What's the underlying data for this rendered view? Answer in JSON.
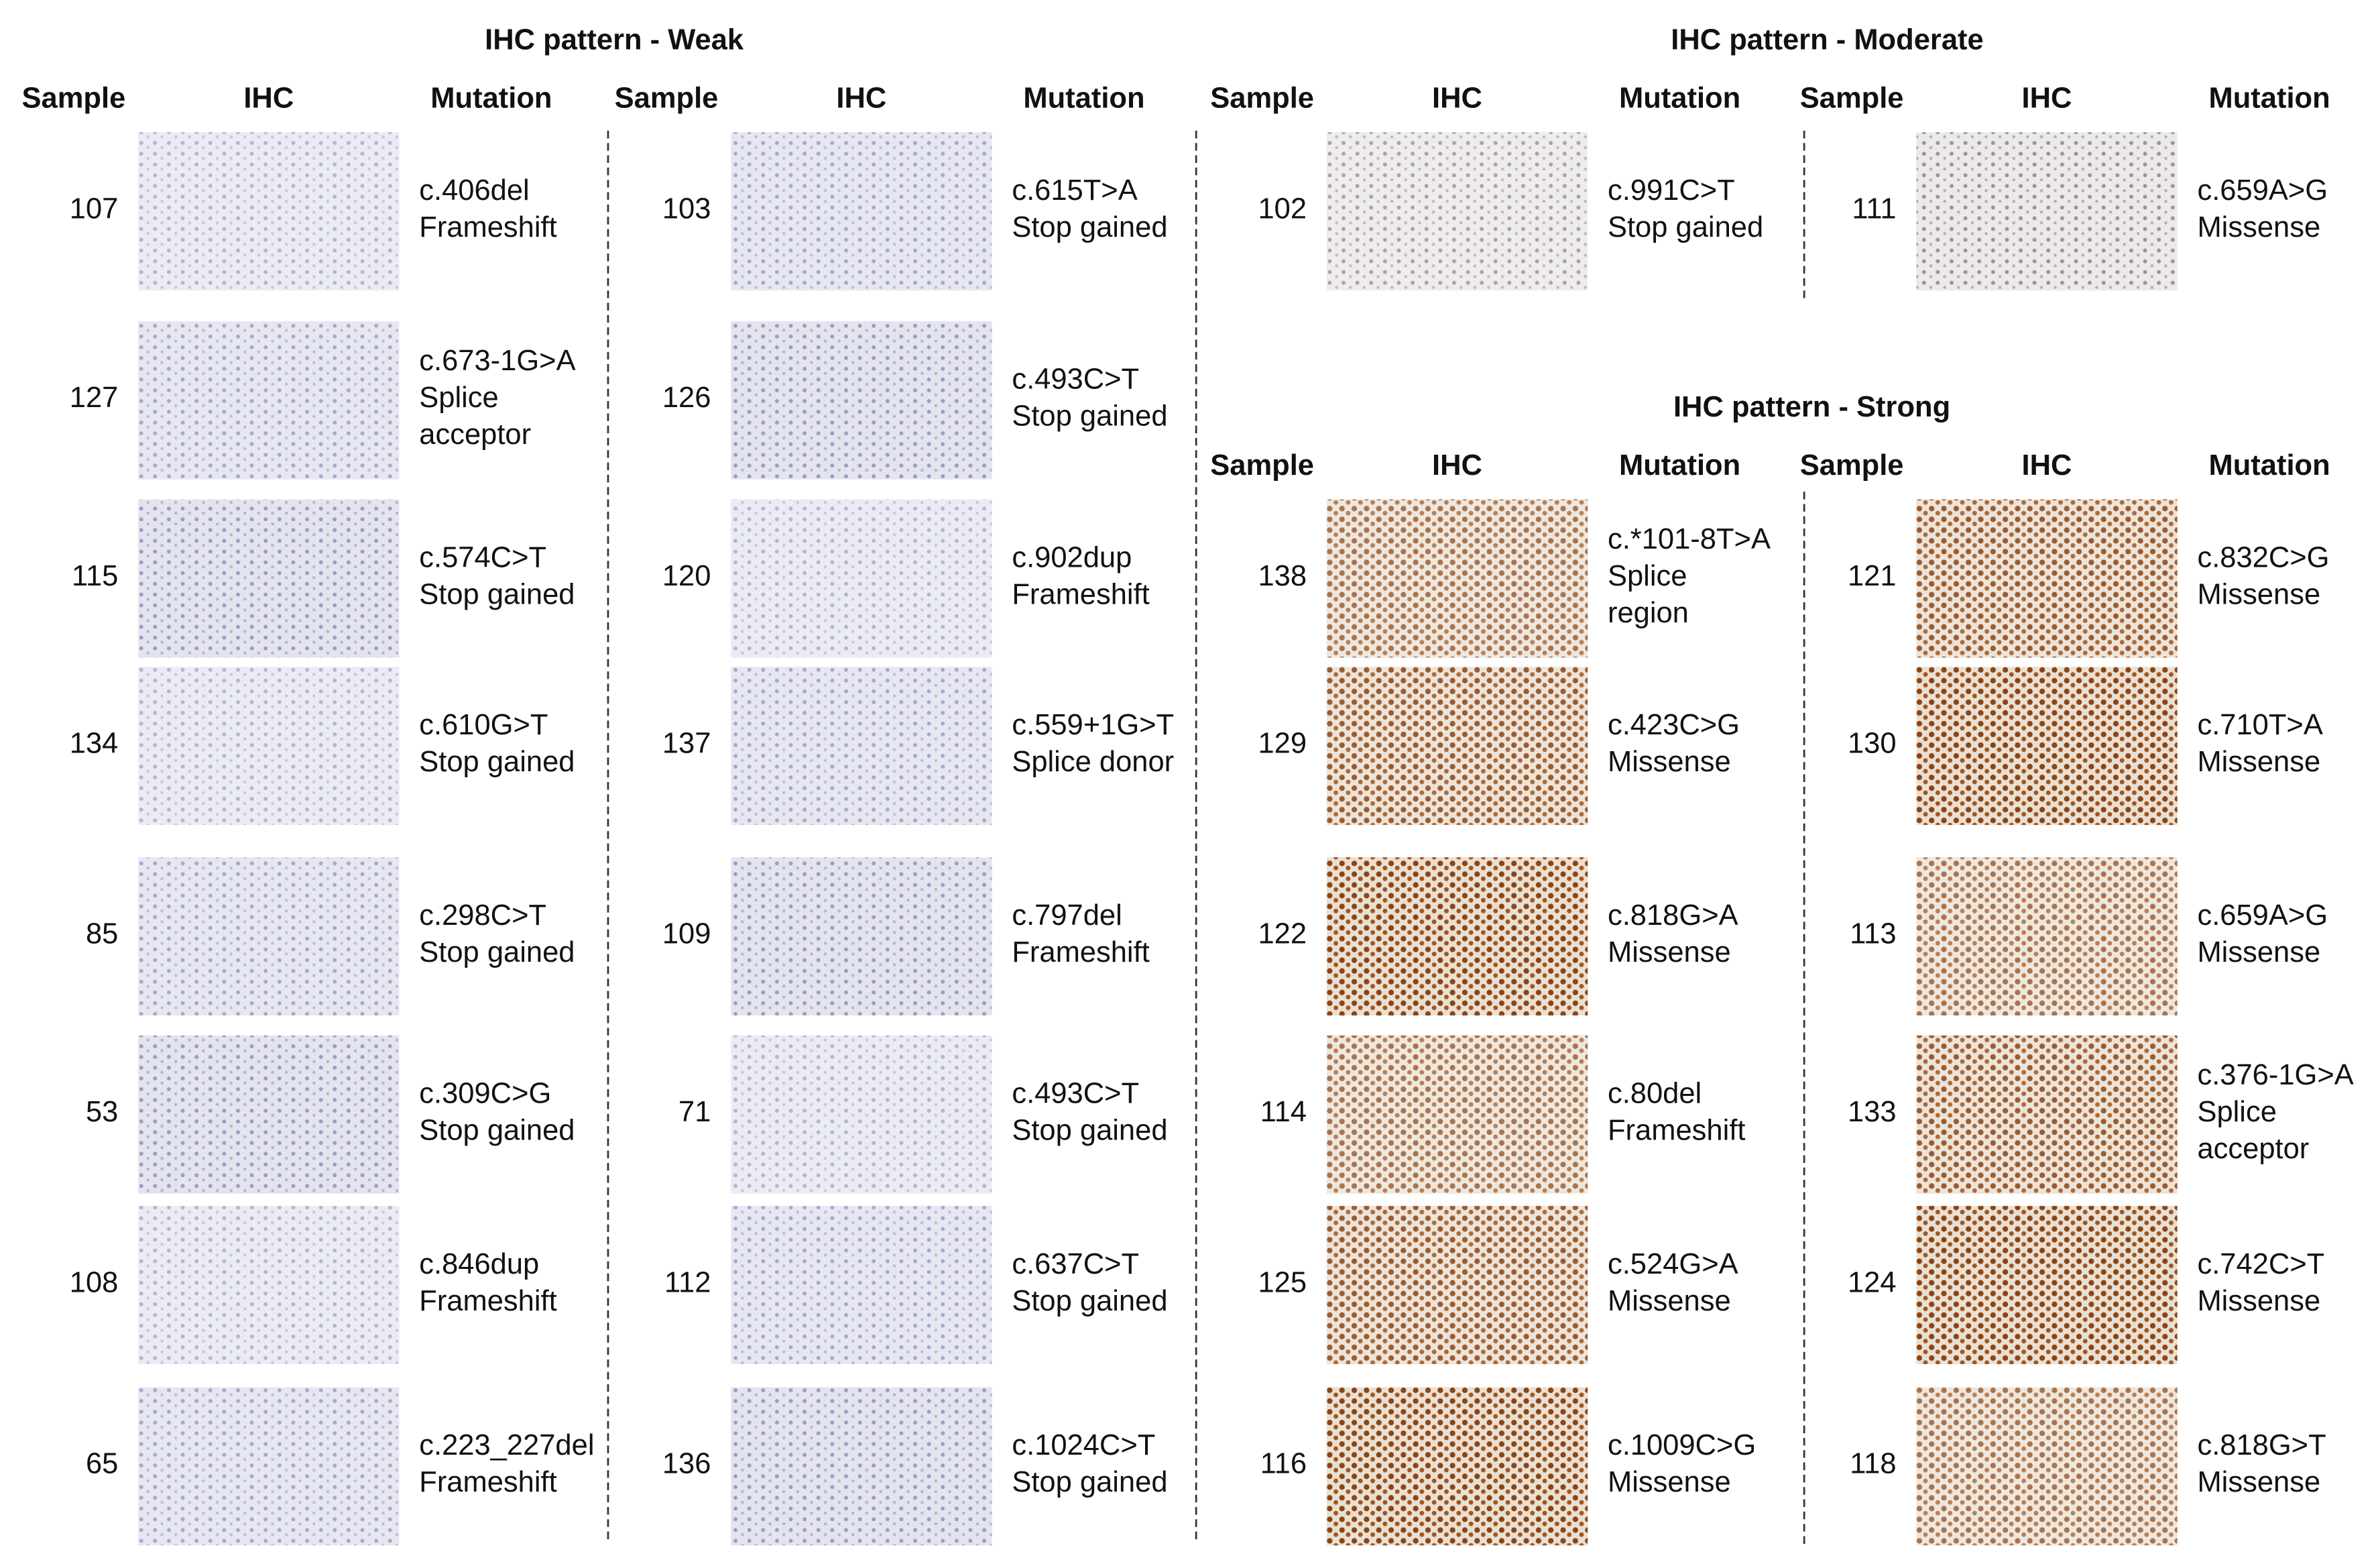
{
  "sections": [
    {
      "title": "IHC pattern - Weak",
      "groups": [
        {
          "headers": [
            "Sample",
            "IHC",
            "Mutation"
          ],
          "rows": [
            {
              "sample": 107,
              "mutation": [
                "c.406del",
                "Frameshift"
              ]
            },
            {
              "sample": 127,
              "mutation": [
                "c.673-1G>A",
                "Splice",
                "acceptor"
              ]
            },
            {
              "sample": 115,
              "mutation": [
                "c.574C>T",
                "Stop gained"
              ]
            },
            {
              "sample": 134,
              "mutation": [
                "c.610G>T",
                "Stop gained"
              ]
            },
            {
              "sample": 85,
              "mutation": [
                "c.298C>T",
                "Stop gained"
              ]
            },
            {
              "sample": 53,
              "mutation": [
                "c.309C>G",
                "Stop gained"
              ]
            },
            {
              "sample": 108,
              "mutation": [
                "c.846dup",
                "Frameshift"
              ]
            },
            {
              "sample": 65,
              "mutation": [
                "c.223_227del",
                "Frameshift"
              ]
            }
          ]
        },
        {
          "headers": [
            "Sample",
            "IHC",
            "Mutation"
          ],
          "rows": [
            {
              "sample": 103,
              "mutation": [
                "c.615T>A",
                "Stop gained"
              ]
            },
            {
              "sample": 126,
              "mutation": [
                "c.493C>T",
                "Stop gained"
              ]
            },
            {
              "sample": 120,
              "mutation": [
                "c.902dup",
                "Frameshift"
              ]
            },
            {
              "sample": 137,
              "mutation": [
                "c.559+1G>T",
                "Splice donor"
              ]
            },
            {
              "sample": 109,
              "mutation": [
                "c.797del",
                "Frameshift"
              ]
            },
            {
              "sample": 71,
              "mutation": [
                "c.493C>T",
                "Stop gained"
              ]
            },
            {
              "sample": 112,
              "mutation": [
                "c.637C>T",
                "Stop gained"
              ]
            },
            {
              "sample": 136,
              "mutation": [
                "c.1024C>T",
                "Stop gained"
              ]
            }
          ]
        }
      ]
    },
    {
      "title": "IHC pattern - Moderate",
      "groups": [
        {
          "headers": [
            "Sample",
            "IHC",
            "Mutation"
          ],
          "rows": [
            {
              "sample": 102,
              "mutation": [
                "c.991C>T",
                "Stop gained"
              ]
            }
          ]
        },
        {
          "headers": [
            "Sample",
            "IHC",
            "Mutation"
          ],
          "rows": [
            {
              "sample": 111,
              "mutation": [
                "c.659A>G",
                "Missense"
              ]
            }
          ]
        }
      ]
    },
    {
      "title": "IHC pattern - Strong",
      "groups": [
        {
          "headers": [
            "Sample",
            "IHC",
            "Mutation"
          ],
          "rows": [
            {
              "sample": 138,
              "mutation": [
                "c.*101-8T>A",
                "Splice",
                "region"
              ]
            },
            {
              "sample": 129,
              "mutation": [
                "c.423C>G",
                "Missense"
              ]
            },
            {
              "sample": 122,
              "mutation": [
                "c.818G>A",
                "Missense"
              ]
            },
            {
              "sample": 114,
              "mutation": [
                "c.80del",
                "Frameshift"
              ]
            },
            {
              "sample": 125,
              "mutation": [
                "c.524G>A",
                "Missense"
              ]
            },
            {
              "sample": 116,
              "mutation": [
                "c.1009C>G",
                "Missense"
              ]
            }
          ]
        },
        {
          "headers": [
            "Sample",
            "IHC",
            "Mutation"
          ],
          "rows": [
            {
              "sample": 121,
              "mutation": [
                "c.832C>G",
                "Missense"
              ]
            },
            {
              "sample": 130,
              "mutation": [
                "c.710T>A",
                "Missense"
              ]
            },
            {
              "sample": 113,
              "mutation": [
                "c.659A>G",
                "Missense"
              ]
            },
            {
              "sample": 133,
              "mutation": [
                "c.376-1G>A",
                "Splice",
                "acceptor"
              ]
            },
            {
              "sample": 124,
              "mutation": [
                "c.742C>T",
                "Missense"
              ]
            },
            {
              "sample": 118,
              "mutation": [
                "c.818G>T",
                "Missense"
              ]
            }
          ]
        }
      ]
    }
  ]
}
